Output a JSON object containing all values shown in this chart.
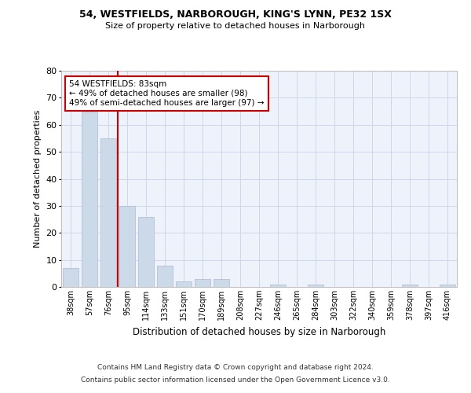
{
  "title1": "54, WESTFIELDS, NARBOROUGH, KING'S LYNN, PE32 1SX",
  "title2": "Size of property relative to detached houses in Narborough",
  "xlabel": "Distribution of detached houses by size in Narborough",
  "ylabel": "Number of detached properties",
  "categories": [
    "38sqm",
    "57sqm",
    "76sqm",
    "95sqm",
    "114sqm",
    "133sqm",
    "151sqm",
    "170sqm",
    "189sqm",
    "208sqm",
    "227sqm",
    "246sqm",
    "265sqm",
    "284sqm",
    "303sqm",
    "322sqm",
    "340sqm",
    "359sqm",
    "378sqm",
    "397sqm",
    "416sqm"
  ],
  "values": [
    7,
    65,
    55,
    30,
    26,
    8,
    2,
    3,
    3,
    0,
    0,
    1,
    0,
    1,
    0,
    0,
    0,
    0,
    1,
    0,
    1
  ],
  "bar_color": "#ccd9e8",
  "bar_edge_color": "#aabbd0",
  "vline_x": 2.5,
  "annotation_text": "54 WESTFIELDS: 83sqm\n← 49% of detached houses are smaller (98)\n49% of semi-detached houses are larger (97) →",
  "annotation_box_color": "#ffffff",
  "annotation_box_edge_color": "#cc0000",
  "vline_color": "#cc0000",
  "grid_color": "#cdd8ea",
  "background_color": "#eef2fa",
  "footer1": "Contains HM Land Registry data © Crown copyright and database right 2024.",
  "footer2": "Contains public sector information licensed under the Open Government Licence v3.0.",
  "ylim": [
    0,
    80
  ],
  "yticks": [
    0,
    10,
    20,
    30,
    40,
    50,
    60,
    70,
    80
  ]
}
